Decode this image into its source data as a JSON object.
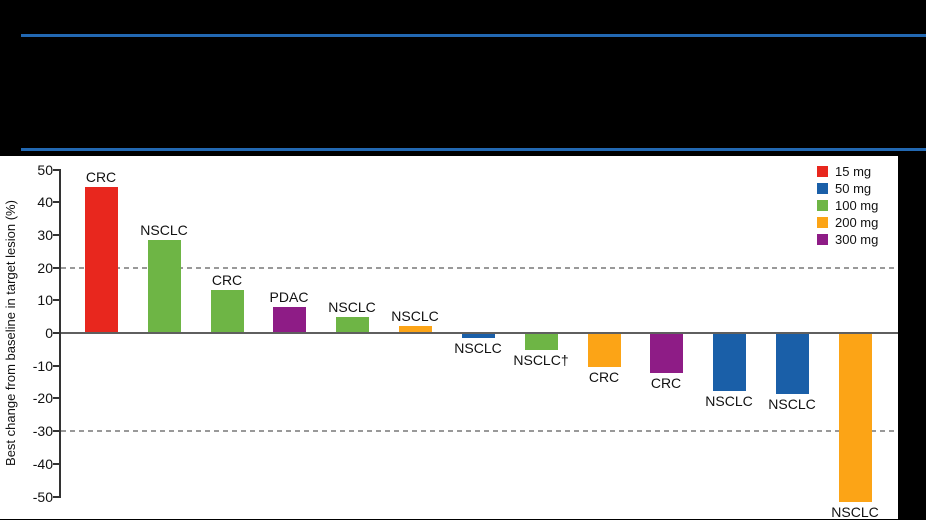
{
  "figure": {
    "background_color": "#000000",
    "panel_color": "#FFFFFF",
    "rule_color": "#2268B2"
  },
  "chart_data": {
    "type": "bar",
    "title": "",
    "xlabel": "",
    "ylabel": "Best change from baseline in target lesion (%)",
    "ylim": [
      -50,
      50
    ],
    "yticks": [
      50,
      40,
      30,
      20,
      10,
      0,
      -10,
      -20,
      -30,
      -40,
      -50
    ],
    "reference_lines": [
      20,
      -30
    ],
    "grid": "off",
    "legend_position": "top-right",
    "legend": [
      {
        "label": "15 mg",
        "color": "#E8271E"
      },
      {
        "label": "50 mg",
        "color": "#1A5FA8"
      },
      {
        "label": "100 mg",
        "color": "#6EB545"
      },
      {
        "label": "200 mg",
        "color": "#FCA416"
      },
      {
        "label": "300 mg",
        "color": "#8E1C86"
      }
    ],
    "bars": [
      {
        "label": "CRC",
        "dose": "15 mg",
        "value": 44.5
      },
      {
        "label": "NSCLC",
        "dose": "100 mg",
        "value": 28.5
      },
      {
        "label": "CRC",
        "dose": "100 mg",
        "value": 13
      },
      {
        "label": "PDAC",
        "dose": "300 mg",
        "value": 8
      },
      {
        "label": "NSCLC",
        "dose": "100 mg",
        "value": 4.8
      },
      {
        "label": "NSCLC",
        "dose": "200 mg",
        "value": 2.2
      },
      {
        "label": "NSCLC",
        "dose": "50 mg",
        "value": -1.3
      },
      {
        "label": "NSCLC†",
        "dose": "100 mg",
        "value": -5
      },
      {
        "label": "CRC",
        "dose": "200 mg",
        "value": -10
      },
      {
        "label": "CRC",
        "dose": "300 mg",
        "value": -12
      },
      {
        "label": "NSCLC",
        "dose": "50 mg",
        "value": -17.5
      },
      {
        "label": "NSCLC",
        "dose": "50 mg",
        "value": -18.5
      },
      {
        "label": "NSCLC",
        "dose": "200 mg",
        "value": -51.5
      }
    ]
  }
}
